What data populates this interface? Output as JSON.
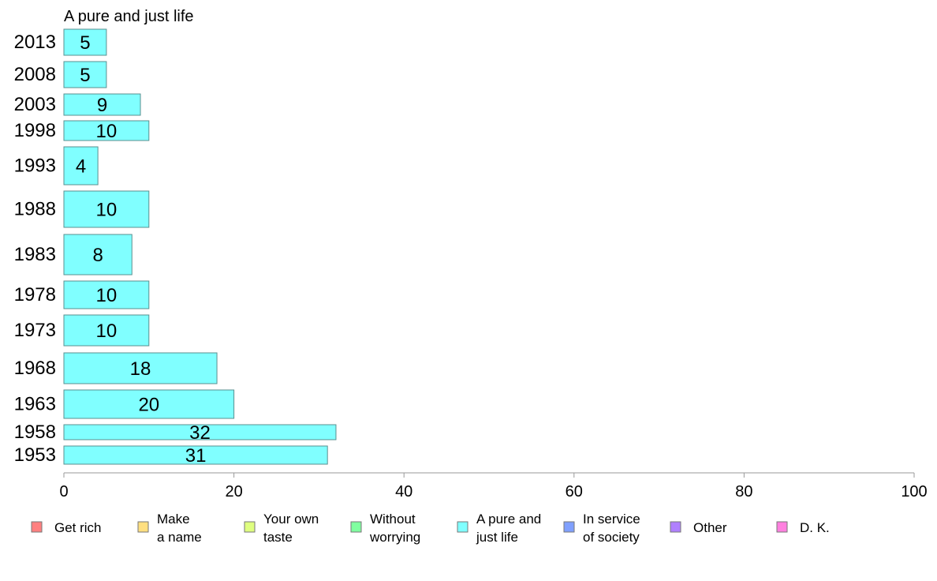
{
  "chart_data": {
    "type": "bar",
    "orientation": "horizontal",
    "title": "A pure and just life",
    "xlabel": "",
    "ylabel": "",
    "xlim": [
      0,
      100
    ],
    "x_ticks": [
      "0",
      "20",
      "40",
      "60",
      "80",
      "100"
    ],
    "grid": false,
    "bar_color": "#80ffff",
    "bar_stroke": "#5a8f8f",
    "categories": [
      "2013",
      "2008",
      "2003",
      "1998",
      "1993",
      "1988",
      "1983",
      "1978",
      "1973",
      "1968",
      "1963",
      "1958",
      "1953"
    ],
    "values": [
      5,
      5,
      9,
      10,
      4,
      10,
      8,
      10,
      10,
      18,
      20,
      32,
      31
    ],
    "data_labels": [
      "5",
      "5",
      "9",
      "10",
      "4",
      "10",
      "8",
      "10",
      "10",
      "18",
      "20",
      "32",
      "31"
    ],
    "legend_position": "bottom",
    "legend": [
      {
        "lines": [
          "Get rich"
        ],
        "color": "#ff8080"
      },
      {
        "lines": [
          "Make",
          "a name"
        ],
        "color": "#ffdf80"
      },
      {
        "lines": [
          "Your own",
          "taste"
        ],
        "color": "#dfff80"
      },
      {
        "lines": [
          "Without",
          "worrying"
        ],
        "color": "#80ffa0"
      },
      {
        "lines": [
          "A pure and",
          "just life"
        ],
        "color": "#80ffff"
      },
      {
        "lines": [
          "In service",
          "of society"
        ],
        "color": "#80a0ff"
      },
      {
        "lines": [
          "Other"
        ],
        "color": "#b080ff"
      },
      {
        "lines": [
          "D. K."
        ],
        "color": "#ff80df"
      }
    ]
  }
}
